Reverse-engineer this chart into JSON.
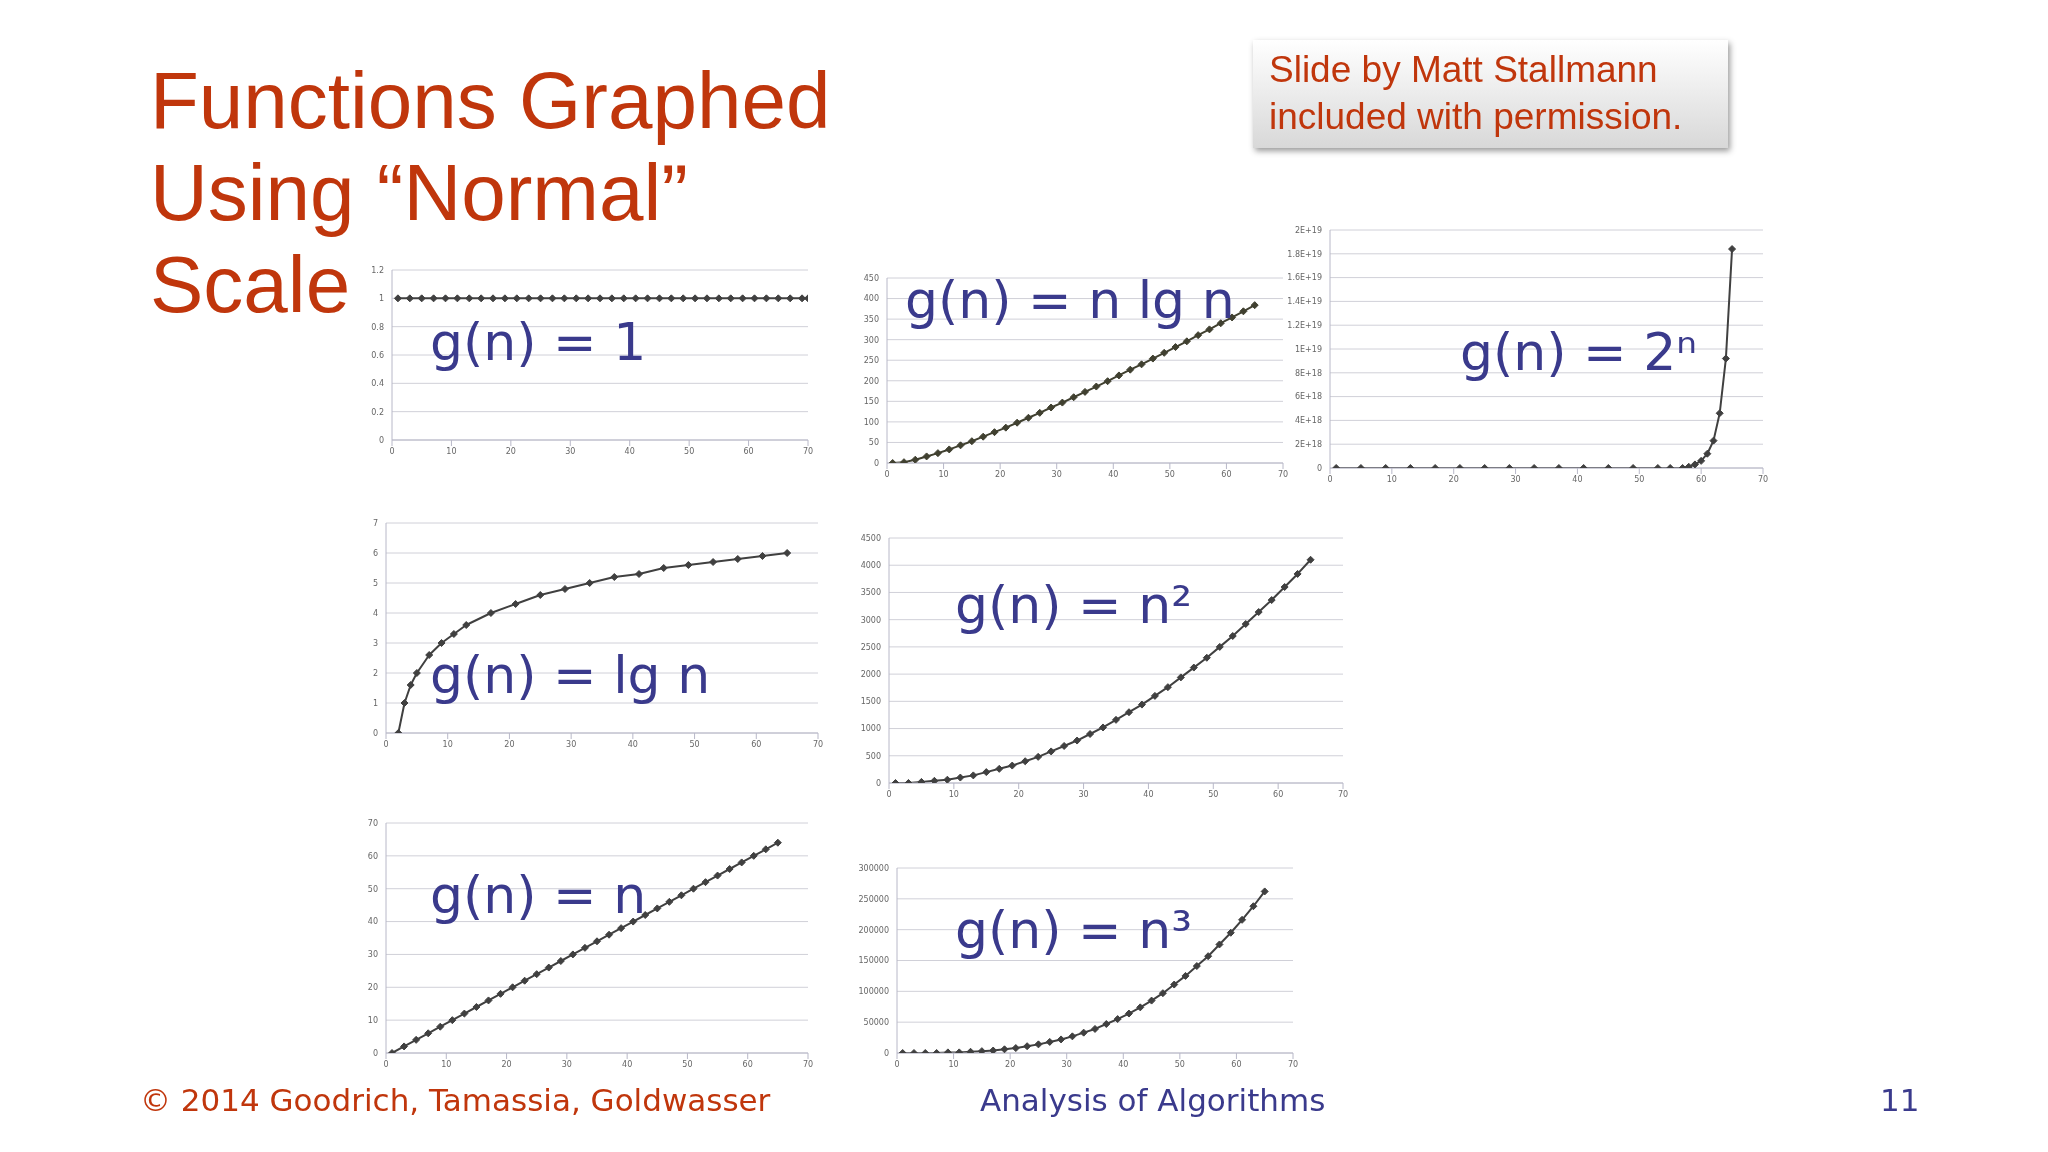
{
  "chart_data": [
    {
      "type": "line",
      "title": "g(n) = 1",
      "annotations": [
        "Functions Graphed Using “Normal” Scale",
        "Slide by Matt Stallmann included with permission.",
        "© 2014 Goodrich, Tamassia, Goldwasser",
        "Analysis of Algorithms",
        "11"
      ],
      "x": [
        1,
        3,
        5,
        7,
        9,
        11,
        13,
        15,
        17,
        19,
        21,
        23,
        25,
        27,
        29,
        31,
        33,
        35,
        37,
        39,
        41,
        43,
        45,
        47,
        49,
        51,
        53,
        55,
        57,
        59,
        61,
        63,
        65,
        67,
        69,
        70
      ],
      "values": [
        1,
        1,
        1,
        1,
        1,
        1,
        1,
        1,
        1,
        1,
        1,
        1,
        1,
        1,
        1,
        1,
        1,
        1,
        1,
        1,
        1,
        1,
        1,
        1,
        1,
        1,
        1,
        1,
        1,
        1,
        1,
        1,
        1,
        1,
        1,
        1
      ],
      "color": "#404040",
      "xlim": [
        0,
        70
      ],
      "xticks": [
        0,
        10,
        20,
        30,
        40,
        50,
        60,
        70
      ],
      "ylim": [
        0,
        1.2
      ],
      "yticks": [
        0,
        0.2,
        0.4,
        0.6,
        0.8,
        1,
        1.2
      ],
      "grid": "y",
      "marker": "diamond"
    },
    {
      "type": "line",
      "title": "g(n) = n lg n",
      "x": [
        1,
        3,
        5,
        7,
        9,
        11,
        13,
        15,
        17,
        19,
        21,
        23,
        25,
        27,
        29,
        31,
        33,
        35,
        37,
        39,
        41,
        43,
        45,
        47,
        49,
        51,
        53,
        55,
        57,
        59,
        61,
        63,
        65
      ],
      "values": [
        0,
        2,
        8,
        16,
        24,
        33,
        43,
        53,
        64,
        75,
        86,
        98,
        110,
        122,
        135,
        147,
        160,
        173,
        186,
        199,
        213,
        227,
        240,
        254,
        268,
        282,
        296,
        311,
        325,
        340,
        354,
        369,
        384
      ],
      "color": "#404030",
      "xlim": [
        0,
        70
      ],
      "xticks": [
        0,
        10,
        20,
        30,
        40,
        50,
        60,
        70
      ],
      "ylim": [
        0,
        450
      ],
      "yticks": [
        0,
        50,
        100,
        150,
        200,
        250,
        300,
        350,
        400,
        450
      ],
      "grid": "y",
      "marker": "diamond"
    },
    {
      "type": "line",
      "title": "g(n) = 2ⁿ",
      "x": [
        1,
        5,
        9,
        13,
        17,
        21,
        25,
        29,
        33,
        37,
        41,
        45,
        49,
        53,
        55,
        57,
        58,
        59,
        60,
        61,
        62,
        63,
        64,
        65
      ],
      "values": [
        0,
        0,
        0,
        0,
        0,
        0,
        0,
        0,
        0,
        0,
        0,
        0,
        0,
        0,
        0,
        0,
        1e+17,
        3e+17,
        6e+17,
        1.2e+18,
        2.3e+18,
        4.6e+18,
        9.2e+18,
        1.84e+19
      ],
      "color": "#404040",
      "xlim": [
        0,
        70
      ],
      "xticks": [
        0,
        10,
        20,
        30,
        40,
        50,
        60,
        70
      ],
      "ylim": [
        0,
        2e+19
      ],
      "yticks": [
        0,
        {
          "value": 2e+18,
          "label": "2E+18"
        },
        {
          "value": 4e+18,
          "label": "4E+18"
        },
        {
          "value": 6e+18,
          "label": "6E+18"
        },
        {
          "value": 8e+18,
          "label": "8E+18"
        },
        {
          "value": 1e+19,
          "label": "1E+19"
        },
        {
          "value": 1.2e+19,
          "label": "1.2E+19"
        },
        {
          "value": 1.4e+19,
          "label": "1.4E+19"
        },
        {
          "value": 1.6e+19,
          "label": "1.6E+19"
        },
        {
          "value": 1.8e+19,
          "label": "1.8E+19"
        },
        {
          "value": 2e+19,
          "label": "2E+19"
        }
      ],
      "grid": "y",
      "marker": "diamond"
    },
    {
      "type": "line",
      "title": "g(n) = lg n",
      "x": [
        2,
        3,
        4,
        5,
        7,
        9,
        11,
        13,
        17,
        21,
        25,
        29,
        33,
        37,
        41,
        45,
        49,
        53,
        57,
        61,
        65
      ],
      "values": [
        0,
        1,
        1.6,
        2,
        2.6,
        3,
        3.3,
        3.6,
        4,
        4.3,
        4.6,
        4.8,
        5,
        5.2,
        5.3,
        5.5,
        5.6,
        5.7,
        5.8,
        5.9,
        6
      ],
      "color": "#404040",
      "xlim": [
        0,
        70
      ],
      "xticks": [
        0,
        10,
        20,
        30,
        40,
        50,
        60,
        70
      ],
      "ylim": [
        0,
        7
      ],
      "yticks": [
        0,
        1,
        2,
        3,
        4,
        5,
        6,
        7
      ],
      "grid": "y",
      "marker": "diamond"
    },
    {
      "type": "line",
      "title": "g(n) = n²",
      "x": [
        1,
        3,
        5,
        7,
        9,
        11,
        13,
        15,
        17,
        19,
        21,
        23,
        25,
        27,
        29,
        31,
        33,
        35,
        37,
        39,
        41,
        43,
        45,
        47,
        49,
        51,
        53,
        55,
        57,
        59,
        61,
        63,
        65
      ],
      "values": [
        0,
        0,
        20,
        40,
        60,
        100,
        140,
        200,
        260,
        320,
        400,
        480,
        580,
        680,
        780,
        900,
        1020,
        1160,
        1300,
        1440,
        1600,
        1760,
        1940,
        2120,
        2300,
        2500,
        2700,
        2920,
        3140,
        3360,
        3600,
        3840,
        4100
      ],
      "color": "#404040",
      "xlim": [
        0,
        70
      ],
      "xticks": [
        0,
        10,
        20,
        30,
        40,
        50,
        60,
        70
      ],
      "ylim": [
        0,
        4500
      ],
      "yticks": [
        0,
        500,
        1000,
        1500,
        2000,
        2500,
        3000,
        3500,
        4000,
        4500
      ],
      "grid": "y",
      "marker": "diamond"
    },
    {
      "type": "line",
      "title": "g(n) = n",
      "x": [
        1,
        3,
        5,
        7,
        9,
        11,
        13,
        15,
        17,
        19,
        21,
        23,
        25,
        27,
        29,
        31,
        33,
        35,
        37,
        39,
        41,
        43,
        45,
        47,
        49,
        51,
        53,
        55,
        57,
        59,
        61,
        63,
        65
      ],
      "values": [
        0,
        2,
        4,
        6,
        8,
        10,
        12,
        14,
        16,
        18,
        20,
        22,
        24,
        26,
        28,
        30,
        32,
        34,
        36,
        38,
        40,
        42,
        44,
        46,
        48,
        50,
        52,
        54,
        56,
        58,
        60,
        62,
        64
      ],
      "color": "#404040",
      "xlim": [
        0,
        70
      ],
      "xticks": [
        0,
        10,
        20,
        30,
        40,
        50,
        60,
        70
      ],
      "ylim": [
        0,
        70
      ],
      "yticks": [
        0,
        10,
        20,
        30,
        40,
        50,
        60,
        70
      ],
      "grid": "y",
      "marker": "diamond"
    },
    {
      "type": "line",
      "title": "g(n) = n³",
      "x": [
        1,
        3,
        5,
        7,
        9,
        11,
        13,
        15,
        17,
        19,
        21,
        23,
        25,
        27,
        29,
        31,
        33,
        35,
        37,
        39,
        41,
        43,
        45,
        47,
        49,
        51,
        53,
        55,
        57,
        59,
        61,
        63,
        65
      ],
      "values": [
        0,
        0,
        0,
        0,
        1000,
        1000,
        2000,
        3000,
        4000,
        6000,
        8000,
        11000,
        14000,
        18000,
        22000,
        27000,
        33000,
        39000,
        47000,
        55000,
        64000,
        74000,
        85000,
        97000,
        111000,
        125000,
        141000,
        157000,
        176000,
        195000,
        216000,
        238000,
        262000
      ],
      "color": "#404040",
      "xlim": [
        0,
        70
      ],
      "xticks": [
        0,
        10,
        20,
        30,
        40,
        50,
        60,
        70
      ],
      "ylim": [
        0,
        300000
      ],
      "yticks": [
        0,
        50000,
        100000,
        150000,
        200000,
        250000,
        300000
      ],
      "grid": "y",
      "marker": "diamond"
    }
  ]
}
